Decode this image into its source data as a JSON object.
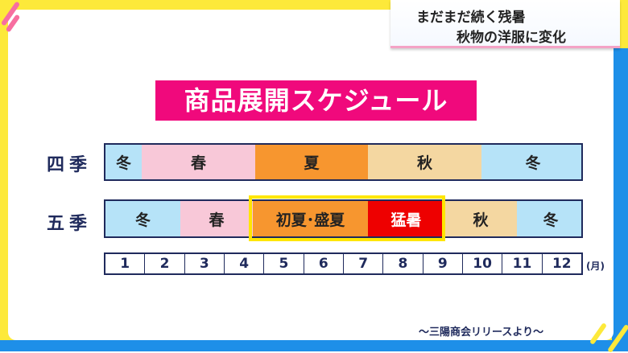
{
  "headline": {
    "line1": "まだまだ続く残暑",
    "line2": "秋物の洋服に変化"
  },
  "title": "商品展開スケジュール",
  "rows": [
    {
      "label": "四季",
      "segments": [
        {
          "text": "冬",
          "color": "#b6e3f8"
        },
        {
          "text": "春",
          "color": "#f8c8d8"
        },
        {
          "text": "夏",
          "color": "#f7962f"
        },
        {
          "text": "秋",
          "color": "#f4d7a1"
        },
        {
          "text": "冬",
          "color": "#b6e3f8"
        }
      ]
    },
    {
      "label": "五季",
      "segments": [
        {
          "text": "冬",
          "color": "#b6e3f8"
        },
        {
          "text": "春",
          "color": "#f8c8d8"
        },
        {
          "text": "初夏･盛夏",
          "color": "#f7962f"
        },
        {
          "text": "猛暑",
          "color": "#ee0000"
        },
        {
          "text": "秋",
          "color": "#f4d7a1"
        },
        {
          "text": "冬",
          "color": "#b6e3f8"
        }
      ]
    }
  ],
  "months": [
    "1",
    "2",
    "3",
    "4",
    "5",
    "6",
    "7",
    "8",
    "9",
    "10",
    "11",
    "12"
  ],
  "month_unit": "(月)",
  "highlight_color": "#ffe600",
  "source": "～三陽商会リリースより～"
}
